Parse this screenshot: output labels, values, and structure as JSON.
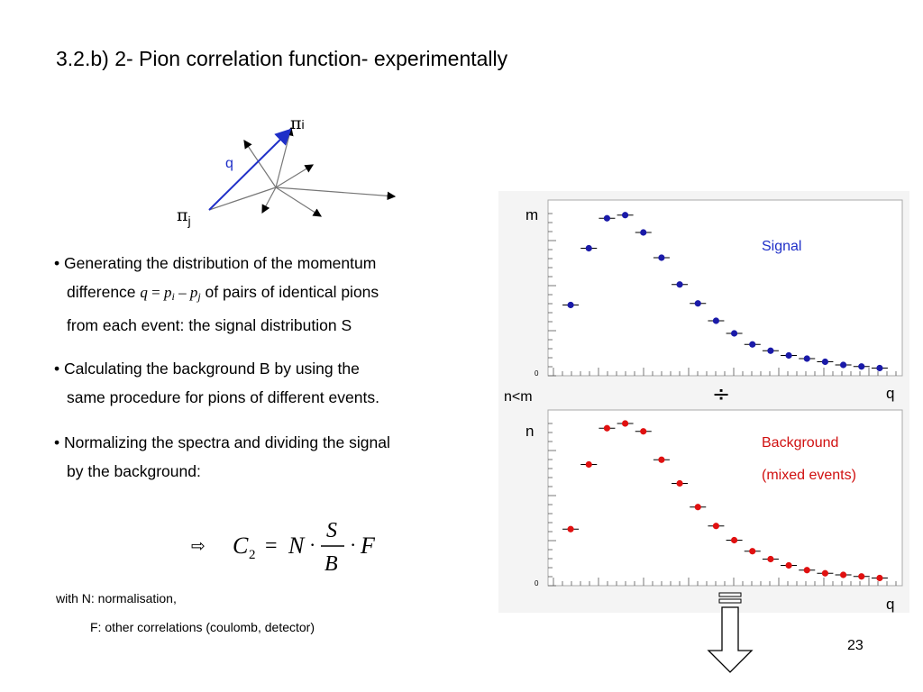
{
  "slide": {
    "title": "3.2.b) 2- Pion correlation function- experimentally",
    "page_number": "23"
  },
  "diagram": {
    "pi_symbol": "π",
    "label_i": "i",
    "label_j": "j",
    "q_label": "q",
    "q_color": "#1f2fc8"
  },
  "bullets": {
    "b1_line1": "• Generating the distribution of the momentum",
    "b1_line2_pre": "difference ",
    "b1_eq_q": "q",
    "b1_eq_eq": " = ",
    "b1_eq_p": "p",
    "b1_eq_i": "i",
    "b1_eq_minus": " – ",
    "b1_eq_p2": "p",
    "b1_eq_j": "j",
    "b1_line2_post": " of pairs of identical pions",
    "b1_line3": "from each event: the signal distribution S",
    "b2_line1": "• Calculating the background B by using the",
    "b2_line2": "same procedure for pions of different events.",
    "b3_line1": "• Normalizing the spectra and dividing the signal",
    "b3_line2": "by the background:"
  },
  "formula": {
    "arrow": "⇨",
    "C": "C",
    "sub2": "2",
    "equals": "=",
    "N": "N",
    "dot": "·",
    "S": "S",
    "B": "B",
    "F": "F"
  },
  "notes": {
    "line1": "with N: normalisation,",
    "line2": "F: other correlations (coulomb, detector)"
  },
  "plots": {
    "divide_symbol": "÷",
    "n_less_m": "n<m",
    "signal": {
      "ylabel": "m",
      "xlabel": "q",
      "legend": "Signal",
      "zero_tick": "0",
      "color": "#1a1aa8",
      "legend_color": "#1f2fc8"
    },
    "background": {
      "ylabel": "n",
      "xlabel": "q",
      "legend_line1": "Background",
      "legend_line2": "(mixed events)",
      "zero_tick": "0",
      "color": "#e01010",
      "legend_color": "#d01010"
    }
  },
  "chart_data": [
    {
      "type": "scatter",
      "legend": "Signal",
      "xlabel": "q",
      "ylabel": "m",
      "ylim": [
        0,
        1
      ],
      "x": [
        1,
        2,
        3,
        4,
        5,
        6,
        7,
        8,
        9,
        10,
        11,
        12,
        13,
        14,
        15,
        16,
        17,
        18
      ],
      "y": [
        0.42,
        0.78,
        0.97,
        0.99,
        0.88,
        0.72,
        0.55,
        0.43,
        0.32,
        0.24,
        0.17,
        0.13,
        0.1,
        0.08,
        0.06,
        0.04,
        0.03,
        0.02
      ]
    },
    {
      "type": "scatter",
      "legend": "Background (mixed events)",
      "xlabel": "q",
      "ylabel": "n",
      "ylim": [
        0,
        1
      ],
      "x": [
        1,
        2,
        3,
        4,
        5,
        6,
        7,
        8,
        9,
        10,
        11,
        12,
        13,
        14,
        15,
        16,
        17,
        18
      ],
      "y": [
        0.33,
        0.74,
        0.97,
        1.0,
        0.95,
        0.77,
        0.62,
        0.47,
        0.35,
        0.26,
        0.19,
        0.14,
        0.1,
        0.07,
        0.05,
        0.04,
        0.03,
        0.02
      ]
    }
  ]
}
